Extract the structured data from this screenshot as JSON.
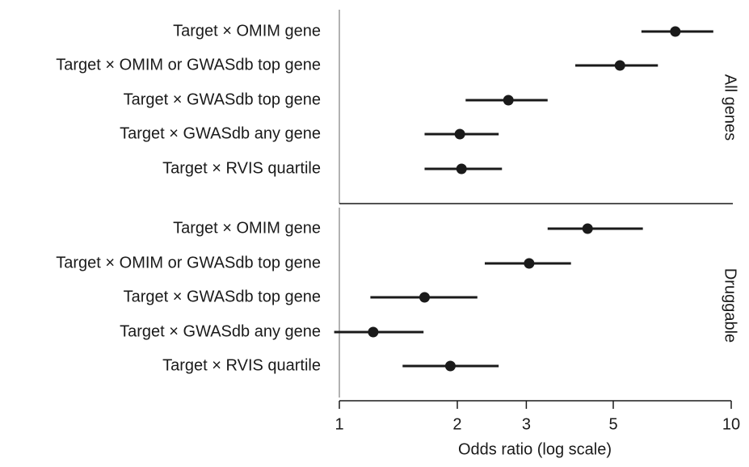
{
  "chart_data": {
    "type": "forest",
    "xlabel": "Odds ratio (log scale)",
    "xscale": "log",
    "xlim": [
      1,
      10
    ],
    "xticks": [
      {
        "value": 1,
        "label": "1"
      },
      {
        "value": 2,
        "label": "2"
      },
      {
        "value": 3,
        "label": "3"
      },
      {
        "value": 5,
        "label": "5"
      },
      {
        "value": 10,
        "label": "10"
      }
    ],
    "panels": [
      {
        "name": "All genes",
        "rows": [
          {
            "label": "Target × OMIM gene",
            "estimate": 7.2,
            "lower": 5.9,
            "upper": 9.0
          },
          {
            "label": "Target × OMIM or GWASdb top gene",
            "estimate": 5.2,
            "lower": 4.0,
            "upper": 6.5
          },
          {
            "label": "Target × GWASdb top gene",
            "estimate": 2.7,
            "lower": 2.1,
            "upper": 3.4
          },
          {
            "label": "Target × GWASdb any gene",
            "estimate": 2.03,
            "lower": 1.65,
            "upper": 2.55
          },
          {
            "label": "Target × RVIS quartile",
            "estimate": 2.05,
            "lower": 1.65,
            "upper": 2.6
          }
        ]
      },
      {
        "name": "Druggable",
        "rows": [
          {
            "label": "Target × OMIM gene",
            "estimate": 4.3,
            "lower": 3.4,
            "upper": 5.95
          },
          {
            "label": "Target × OMIM or GWASdb top gene",
            "estimate": 3.05,
            "lower": 2.35,
            "upper": 3.9
          },
          {
            "label": "Target × GWASdb top gene",
            "estimate": 1.65,
            "lower": 1.2,
            "upper": 2.25
          },
          {
            "label": "Target × GWASdb any gene",
            "estimate": 1.22,
            "lower": 0.97,
            "upper": 1.64
          },
          {
            "label": "Target × RVIS quartile",
            "estimate": 1.92,
            "lower": 1.45,
            "upper": 2.55
          }
        ]
      }
    ],
    "colors": {
      "ink": "#1a1a1a",
      "axis": "#999999"
    }
  }
}
